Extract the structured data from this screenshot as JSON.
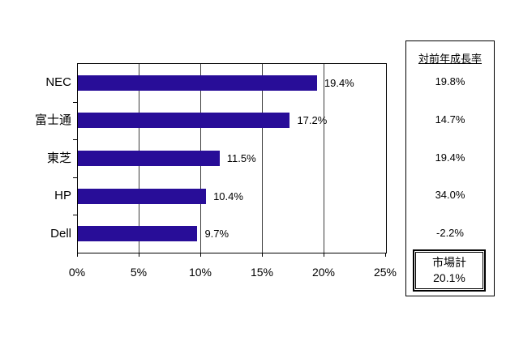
{
  "chart_data": {
    "type": "bar",
    "orientation": "horizontal",
    "title": "",
    "categories": [
      "NEC",
      "富士通",
      "東芝",
      "HP",
      "Dell"
    ],
    "values": [
      19.4,
      17.2,
      11.5,
      10.4,
      9.7
    ],
    "value_labels": [
      "19.4%",
      "17.2%",
      "11.5%",
      "10.4%",
      "9.7%"
    ],
    "xlim": [
      0,
      25
    ],
    "x_tick_values": [
      0,
      5,
      10,
      15,
      20,
      25
    ],
    "x_tick_labels": [
      "0%",
      "5%",
      "10%",
      "15%",
      "20%",
      "25%"
    ],
    "grid": true,
    "legend": "none",
    "bar_color": "#280d98"
  },
  "side_panel": {
    "title": "対前年成長率",
    "growth_values": [
      "19.8%",
      "14.7%",
      "19.4%",
      "34.0%",
      "-2.2%"
    ],
    "market_total_label": "市場計",
    "market_total_value": "20.1%"
  }
}
